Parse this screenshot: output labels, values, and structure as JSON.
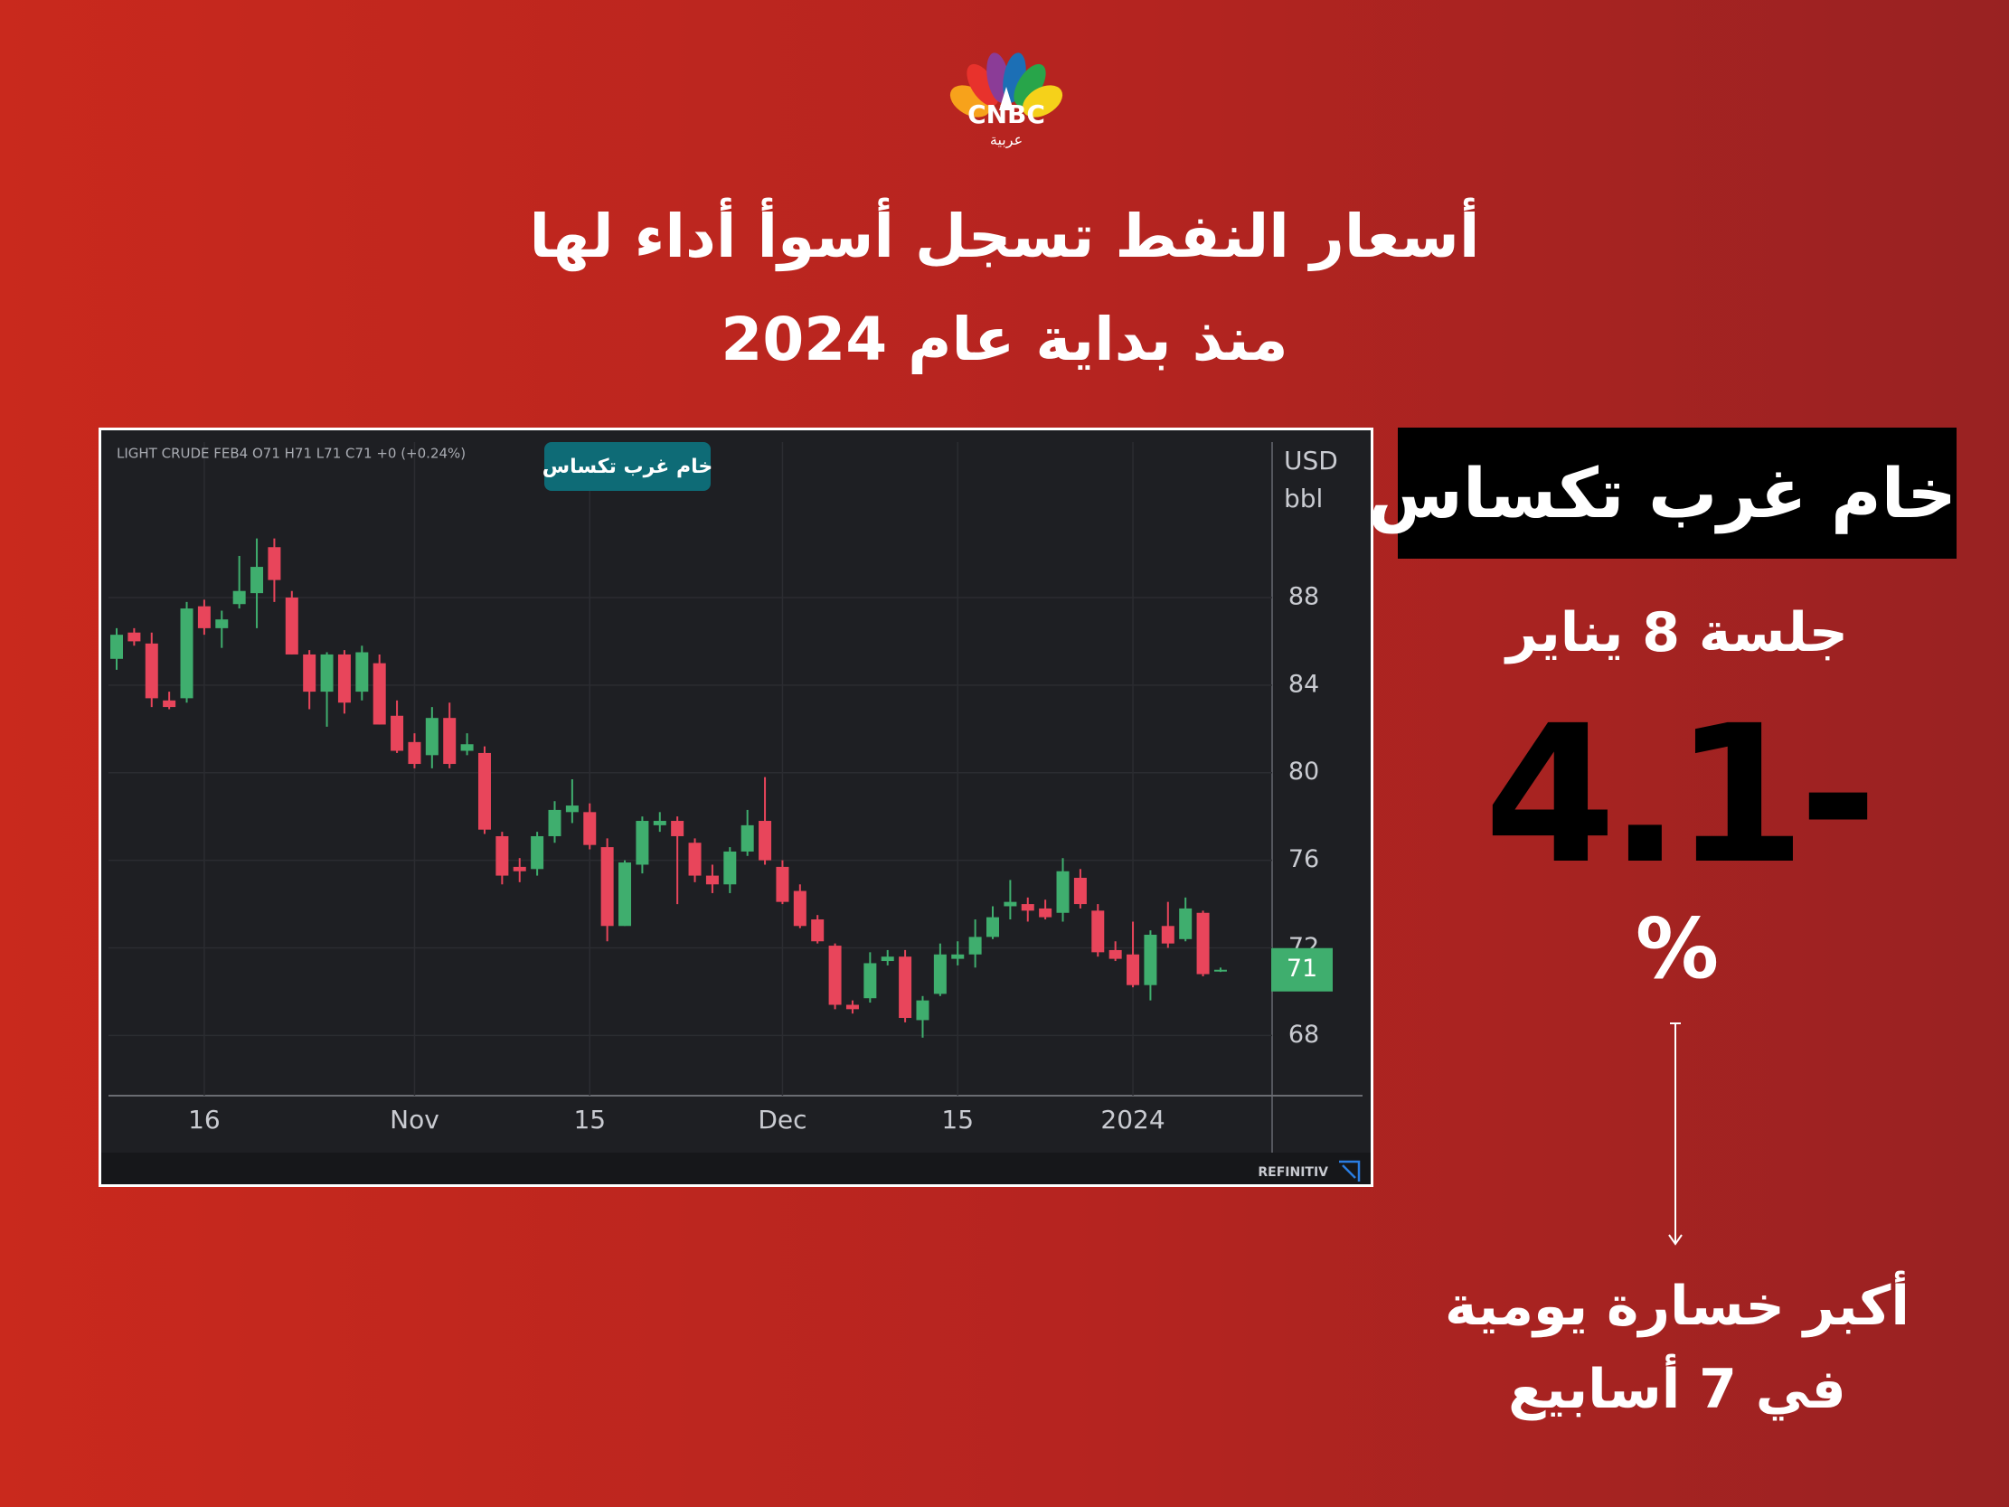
{
  "header": {
    "logo": "CNBC",
    "logo_sub": "عربية",
    "title_lines": [
      "أسعار النفط تسجل أسوأ أداء لها",
      "منذ بداية عام 2024"
    ]
  },
  "panel": {
    "label": "خام غرب تكساس",
    "session": "جلسة 8 يناير",
    "change": "4.1-",
    "unit": "%",
    "note_lines": [
      "أكبر خسارة يومية",
      "في 7 أسابيع"
    ]
  },
  "chart_data": {
    "type": "candlestick",
    "info": "LIGHT CRUDE FEB4  O71  H71  L71  C71  +0 (+0.24%)",
    "badge": "خام غرب تكساس",
    "unit": [
      "USD",
      "bbl"
    ],
    "source": "REFINITIV",
    "categories": [
      null,
      null,
      null,
      null,
      null,
      "16",
      null,
      null,
      null,
      null,
      null,
      null,
      null,
      null,
      null,
      null,
      null,
      "Nov",
      null,
      null,
      null,
      null,
      null,
      null,
      null,
      null,
      null,
      "15",
      null,
      null,
      null,
      null,
      null,
      null,
      null,
      null,
      null,
      null,
      "Dec",
      null,
      null,
      null,
      null,
      null,
      null,
      null,
      null,
      null,
      "15",
      null,
      null,
      null,
      null,
      null,
      null,
      null,
      null,
      null,
      "2024",
      null,
      null,
      null,
      null,
      null
    ],
    "series": [
      {
        "up_color": "#3fae6e",
        "down_color": "#e8455b",
        "open": [
          85.2,
          86.4,
          85.9,
          83.3,
          83.4,
          87.6,
          86.6,
          87.7,
          88.2,
          90.3,
          88.0,
          85.4,
          83.7,
          85.4,
          83.7,
          85.0,
          82.6,
          81.4,
          80.8,
          82.5,
          81.0,
          80.9,
          77.1,
          75.7,
          75.6,
          77.1,
          78.2,
          78.2,
          76.6,
          73.0,
          75.8,
          77.6,
          77.8,
          76.8,
          75.3,
          74.9,
          76.4,
          77.8,
          75.7,
          74.6,
          73.3,
          72.1,
          69.4,
          69.7,
          71.4,
          71.6,
          68.7,
          69.9,
          71.5,
          71.7,
          72.5,
          73.9,
          74.0,
          73.8,
          73.6,
          75.2,
          73.7,
          71.9,
          71.7,
          70.3,
          73.0,
          72.4,
          73.6,
          71
        ],
        "high": [
          86.6,
          86.6,
          86.4,
          83.7,
          87.8,
          87.9,
          87.4,
          89.9,
          90.7,
          90.7,
          88.3,
          85.6,
          85.5,
          85.6,
          85.8,
          85.4,
          83.3,
          81.8,
          83.0,
          83.2,
          81.8,
          81.2,
          77.3,
          76.1,
          77.3,
          78.7,
          79.7,
          78.6,
          77.0,
          76.0,
          78.0,
          78.2,
          78.0,
          77.0,
          75.8,
          76.6,
          78.3,
          79.8,
          76.0,
          74.9,
          73.5,
          72.2,
          69.6,
          71.8,
          71.9,
          71.9,
          69.8,
          72.2,
          72.3,
          73.3,
          73.9,
          75.1,
          74.3,
          74.2,
          76.1,
          75.6,
          74.0,
          72.3,
          73.2,
          72.8,
          74.1,
          74.3,
          73.7,
          71.1
        ],
        "low": [
          84.7,
          85.8,
          83.0,
          82.9,
          83.2,
          86.3,
          85.7,
          87.5,
          86.6,
          87.8,
          85.4,
          82.9,
          82.1,
          82.7,
          83.3,
          82.2,
          80.9,
          80.2,
          80.2,
          80.2,
          80.8,
          77.2,
          74.9,
          75.0,
          75.3,
          76.8,
          77.7,
          76.5,
          72.3,
          73.0,
          75.4,
          77.3,
          74.0,
          75.0,
          74.5,
          74.5,
          76.2,
          75.8,
          74.0,
          72.9,
          72.2,
          69.2,
          69.0,
          69.5,
          71.2,
          68.6,
          67.9,
          69.8,
          71.2,
          71.1,
          72.4,
          73.3,
          73.2,
          73.3,
          73.2,
          73.8,
          71.6,
          71.4,
          70.2,
          69.6,
          72.0,
          72.3,
          70.7,
          70.9
        ],
        "close": [
          86.3,
          86.0,
          83.4,
          83.0,
          87.5,
          86.6,
          87.0,
          88.3,
          89.4,
          88.8,
          85.4,
          83.7,
          85.4,
          83.2,
          85.5,
          82.2,
          81.0,
          80.4,
          82.5,
          80.4,
          81.3,
          77.4,
          75.3,
          75.5,
          77.1,
          78.3,
          78.5,
          76.7,
          73.0,
          75.9,
          77.8,
          77.8,
          77.1,
          75.3,
          74.9,
          76.4,
          77.6,
          76.0,
          74.1,
          73.0,
          72.3,
          69.4,
          69.2,
          71.3,
          71.6,
          68.8,
          69.6,
          71.7,
          71.7,
          72.5,
          73.4,
          74.1,
          73.7,
          73.4,
          75.5,
          74.0,
          71.8,
          71.5,
          70.3,
          72.6,
          72.2,
          73.8,
          70.8,
          71
        ]
      }
    ],
    "last_price": 71,
    "ylim": [
      65.25,
      95.1
    ],
    "yticks": [
      68,
      72,
      76,
      80,
      84,
      88
    ],
    "grid": true
  }
}
